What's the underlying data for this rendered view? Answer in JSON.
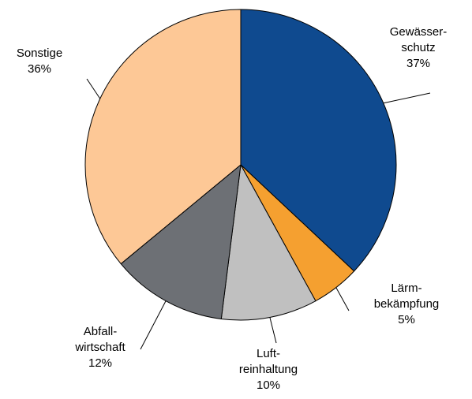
{
  "chart_data": {
    "type": "pie",
    "categories": [
      "Gewässer-\nschutz",
      "Lärm-\nbekämpfung",
      "Luft-\nreinhaltung",
      "Abfall-\nwirtschaft",
      "Sonstige"
    ],
    "values": [
      37,
      5,
      10,
      12,
      36
    ],
    "value_labels": [
      "37%",
      "5%",
      "10%",
      "12%",
      "36%"
    ],
    "colors": [
      "#0f4a8f",
      "#f5a030",
      "#c0c0c0",
      "#6d7075",
      "#fdc896"
    ]
  }
}
